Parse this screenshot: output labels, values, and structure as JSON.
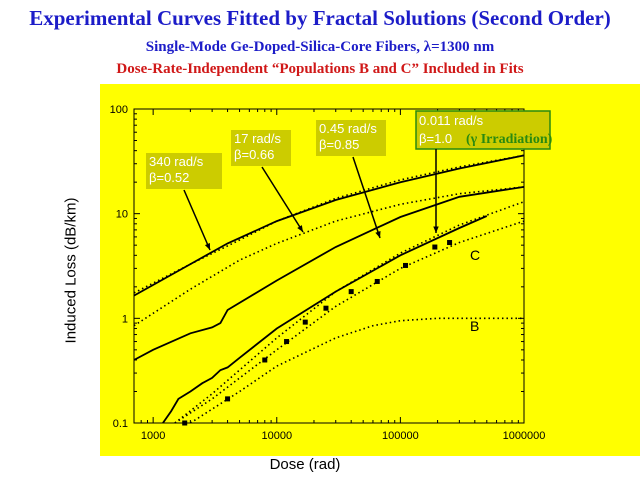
{
  "title": "Experimental Curves Fitted by Fractal Solutions (Second Order)",
  "subtitle": "Single-Mode Ge-Doped-Silica-Core Fibers, λ=1300 nm",
  "subtitle2": "Dose-Rate-Independent “Populations B and C” Included in Fits",
  "colors": {
    "title": "#1c1cc8",
    "subtitle2": "#d01818",
    "plot_bg": "#ffff00",
    "callout_bg": "#cccc00",
    "gamma_text": "#2a8a10"
  },
  "chart_data": {
    "type": "line",
    "xlabel": "Dose (rad)",
    "ylabel": "Induced Loss (dB/km)",
    "xscale": "log",
    "yscale": "log",
    "xlim": [
      700,
      1000000
    ],
    "ylim": [
      0.1,
      100
    ],
    "x_ticks": [
      "1000",
      "10000",
      "100000",
      "1000000"
    ],
    "y_ticks": [
      "0.1",
      "1",
      "10",
      "100"
    ],
    "annotations": [
      {
        "line1": "340 rad/s",
        "line2": "β=0.52"
      },
      {
        "line1": "17 rad/s",
        "line2": "β=0.66"
      },
      {
        "line1": "0.45 rad/s",
        "line2": "β=0.85"
      },
      {
        "line1": "0.011 rad/s",
        "line2": "β=1.0",
        "extra": "(γ Irradiation)"
      }
    ],
    "curve_labels": [
      "C",
      "B"
    ],
    "series": [
      {
        "style": "solid",
        "points": [
          [
            700,
            0.4
          ],
          [
            1000,
            0.5
          ],
          [
            2000,
            0.72
          ],
          [
            3000,
            0.82
          ],
          [
            3500,
            0.9
          ],
          [
            4000,
            1.2
          ],
          [
            10000,
            2.3
          ],
          [
            30000,
            4.8
          ],
          [
            100000,
            9.3
          ],
          [
            300000,
            14.5
          ],
          [
            1000000,
            18
          ]
        ]
      },
      {
        "style": "dotted",
        "points": [
          [
            700,
            0.85
          ],
          [
            2000,
            1.9
          ],
          [
            5000,
            3.6
          ],
          [
            10000,
            5.2
          ],
          [
            30000,
            8.5
          ],
          [
            100000,
            12.3
          ],
          [
            300000,
            15.5
          ],
          [
            1000000,
            18
          ]
        ]
      },
      {
        "style": "solid",
        "points": [
          [
            700,
            1.65
          ],
          [
            2000,
            3.3
          ],
          [
            4000,
            5.2
          ],
          [
            10000,
            8.5
          ],
          [
            30000,
            13.5
          ],
          [
            100000,
            20
          ],
          [
            300000,
            27
          ],
          [
            1000000,
            36
          ]
        ]
      },
      {
        "style": "dotted",
        "points": [
          [
            700,
            1.75
          ],
          [
            2000,
            3.3
          ],
          [
            5000,
            5.6
          ],
          [
            10000,
            8.5
          ],
          [
            30000,
            14
          ],
          [
            100000,
            21
          ],
          [
            300000,
            28
          ],
          [
            1000000,
            36
          ]
        ]
      },
      {
        "style": "solid",
        "points": [
          [
            1200,
            0.1
          ],
          [
            1400,
            0.13
          ],
          [
            1600,
            0.17
          ],
          [
            2000,
            0.2
          ],
          [
            2500,
            0.24
          ],
          [
            3000,
            0.27
          ],
          [
            3500,
            0.32
          ],
          [
            4000,
            0.34
          ],
          [
            5000,
            0.42
          ],
          [
            10000,
            0.8
          ],
          [
            30000,
            1.8
          ],
          [
            100000,
            4
          ],
          [
            300000,
            7.3
          ],
          [
            500000,
            9.5
          ]
        ]
      },
      {
        "style": "dotted",
        "points": [
          [
            1500,
            0.1
          ],
          [
            3000,
            0.19
          ],
          [
            10000,
            0.65
          ],
          [
            30000,
            1.8
          ],
          [
            100000,
            4.2
          ],
          [
            300000,
            7.8
          ],
          [
            1000000,
            13
          ]
        ]
      },
      {
        "style": "dotted",
        "points": [
          [
            1500,
            0.1
          ],
          [
            3000,
            0.17
          ],
          [
            10000,
            0.5
          ],
          [
            30000,
            1.3
          ],
          [
            100000,
            3
          ],
          [
            300000,
            5.3
          ],
          [
            1000000,
            8.5
          ]
        ]
      },
      {
        "style": "dotted",
        "points": [
          [
            2000,
            0.1
          ],
          [
            5000,
            0.2
          ],
          [
            10000,
            0.35
          ],
          [
            30000,
            0.65
          ],
          [
            60000,
            0.85
          ],
          [
            100000,
            0.95
          ],
          [
            200000,
            1.0
          ],
          [
            1000000,
            1.0
          ]
        ]
      },
      {
        "style": "markers",
        "points": [
          [
            1800,
            0.1
          ],
          [
            4000,
            0.17
          ],
          [
            8000,
            0.4
          ],
          [
            12000,
            0.6
          ],
          [
            17000,
            0.92
          ],
          [
            25000,
            1.25
          ],
          [
            40000,
            1.8
          ],
          [
            65000,
            2.25
          ],
          [
            110000,
            3.2
          ],
          [
            190000,
            4.8
          ],
          [
            250000,
            5.3
          ]
        ]
      }
    ]
  }
}
